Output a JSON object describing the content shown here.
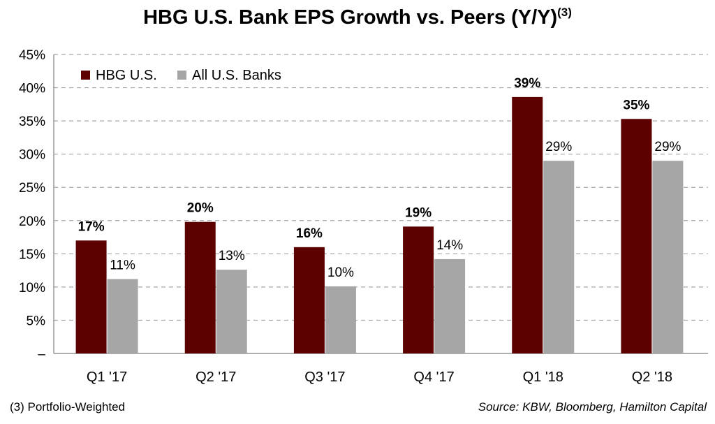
{
  "chart_data": {
    "type": "bar",
    "title": "HBG U.S. Bank EPS Growth vs. Peers (Y/Y)",
    "title_superscript": "(3)",
    "categories": [
      "Q1 '17",
      "Q2 '17",
      "Q3 '17",
      "Q4 '17",
      "Q1 '18",
      "Q2 '18"
    ],
    "series": [
      {
        "name": "HBG U.S.",
        "color": "#5c0000",
        "values": [
          17,
          19.8,
          16,
          19.1,
          38.6,
          35.3
        ],
        "labels": [
          "17%",
          "20%",
          "16%",
          "19%",
          "39%",
          "35%"
        ]
      },
      {
        "name": "All U.S. Banks",
        "color": "#a6a6a6",
        "values": [
          11.2,
          12.6,
          10.1,
          14.2,
          29,
          29
        ],
        "labels": [
          "11%",
          "13%",
          "10%",
          "14%",
          "29%",
          "29%"
        ]
      }
    ],
    "ylim": [
      0,
      45
    ],
    "yticks": [
      0,
      5,
      10,
      15,
      20,
      25,
      30,
      35,
      40,
      45
    ],
    "ytick_labels": [
      "–",
      "5%",
      "10%",
      "15%",
      "20%",
      "25%",
      "30%",
      "35%",
      "40%",
      "45%"
    ],
    "xlabel": "",
    "ylabel": "",
    "grid": true,
    "legend": "top-left"
  },
  "footnote": "(3) Portfolio-Weighted",
  "source": "Source: KBW, Bloomberg, Hamilton Capital"
}
